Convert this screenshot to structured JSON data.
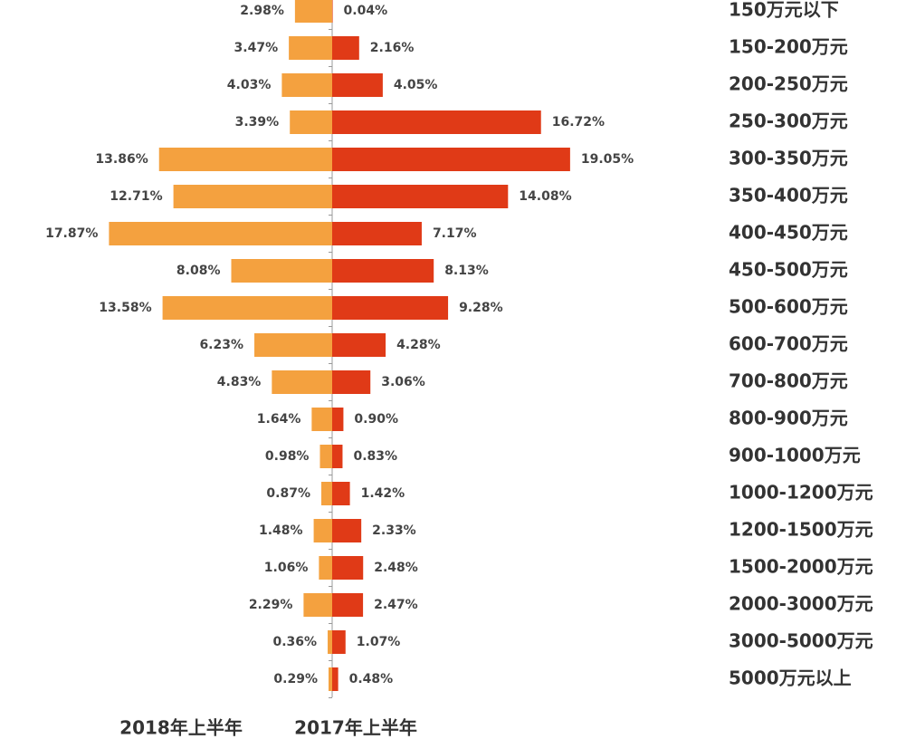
{
  "chart_data": {
    "type": "butterfly",
    "categories": [
      "150万元以下",
      "150-200万元",
      "200-250万元",
      "250-300万元",
      "300-350万元",
      "350-400万元",
      "400-450万元",
      "450-500万元",
      "500-600万元",
      "600-700万元",
      "700-800万元",
      "800-900万元",
      "900-1000万元",
      "1000-1200万元",
      "1200-1500万元",
      "1500-2000万元",
      "2000-3000万元",
      "3000-5000万元",
      "5000万元以上"
    ],
    "series": [
      {
        "name": "2018年上半年",
        "color": "#f4a13f",
        "side": "left",
        "values": [
          2.98,
          3.47,
          4.03,
          3.39,
          13.86,
          12.71,
          17.87,
          8.08,
          13.58,
          6.23,
          4.83,
          1.64,
          0.98,
          0.87,
          1.48,
          1.06,
          2.29,
          0.36,
          0.29
        ],
        "value_labels": [
          "2.98%",
          "3.47%",
          "4.03%",
          "3.39%",
          "13.86%",
          "12.71%",
          "17.87%",
          "8.08%",
          "13.58%",
          "6.23%",
          "4.83%",
          "1.64%",
          "0.98%",
          "0.87%",
          "1.48%",
          "1.06%",
          "2.29%",
          "0.36%",
          "0.29%"
        ]
      },
      {
        "name": "2017年上半年",
        "color": "#e03a17",
        "side": "right",
        "values": [
          0.04,
          2.16,
          4.05,
          16.72,
          19.05,
          14.08,
          7.17,
          8.13,
          9.28,
          4.28,
          3.06,
          0.9,
          0.83,
          1.42,
          2.33,
          2.48,
          2.47,
          1.07,
          0.48
        ],
        "value_labels": [
          "0.04%",
          "2.16%",
          "4.05%",
          "16.72%",
          "19.05%",
          "14.08%",
          "7.17%",
          "8.13%",
          "9.28%",
          "4.28%",
          "3.06%",
          "0.90%",
          "0.83%",
          "1.42%",
          "2.33%",
          "2.48%",
          "2.47%",
          "1.07%",
          "0.48%"
        ]
      }
    ]
  }
}
